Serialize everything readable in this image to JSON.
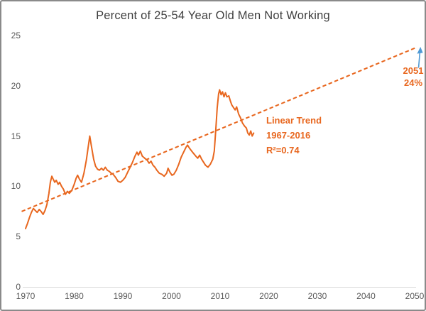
{
  "page": {
    "title": "Percent of 25-54 Year Old Men Not Working"
  },
  "colors": {
    "accent_orange": "#e8671f",
    "arrow_blue": "#4f9ad5",
    "title_gray": "#3e3e3e",
    "tick_gray": "#595959",
    "axis_line_gray": "#d9d9d9"
  },
  "chart_data": {
    "type": "line",
    "title": "Percent of 25-54 Year Old Men Not Working",
    "xlabel": "",
    "ylabel": "",
    "xlim": [
      1970,
      2050
    ],
    "ylim": [
      0,
      25
    ],
    "x_ticks": [
      1970,
      1980,
      1990,
      2000,
      2010,
      2020,
      2030,
      2040,
      2050
    ],
    "y_ticks": [
      0,
      5,
      10,
      15,
      20,
      25
    ],
    "grid": false,
    "legend_position": "none",
    "series": [
      {
        "name": "percent-not-working",
        "style": "solid",
        "points": [
          [
            1970.0,
            5.8
          ],
          [
            1970.4,
            6.3
          ],
          [
            1970.8,
            6.9
          ],
          [
            1971.2,
            7.4
          ],
          [
            1971.6,
            7.8
          ],
          [
            1972.0,
            7.6
          ],
          [
            1972.4,
            7.4
          ],
          [
            1972.8,
            7.7
          ],
          [
            1973.2,
            7.5
          ],
          [
            1973.6,
            7.2
          ],
          [
            1974.0,
            7.6
          ],
          [
            1974.4,
            8.2
          ],
          [
            1974.8,
            9.3
          ],
          [
            1975.1,
            10.4
          ],
          [
            1975.4,
            11.0
          ],
          [
            1975.7,
            10.7
          ],
          [
            1976.0,
            10.4
          ],
          [
            1976.3,
            10.6
          ],
          [
            1976.7,
            10.2
          ],
          [
            1977.0,
            10.4
          ],
          [
            1977.4,
            10.0
          ],
          [
            1977.8,
            9.7
          ],
          [
            1978.2,
            9.2
          ],
          [
            1978.6,
            9.5
          ],
          [
            1979.0,
            9.3
          ],
          [
            1979.5,
            9.6
          ],
          [
            1980.0,
            10.2
          ],
          [
            1980.4,
            10.8
          ],
          [
            1980.7,
            11.1
          ],
          [
            1981.1,
            10.7
          ],
          [
            1981.5,
            10.4
          ],
          [
            1982.0,
            11.3
          ],
          [
            1982.5,
            12.6
          ],
          [
            1983.0,
            14.3
          ],
          [
            1983.2,
            15.0
          ],
          [
            1983.5,
            14.1
          ],
          [
            1984.0,
            12.7
          ],
          [
            1984.4,
            12.0
          ],
          [
            1984.8,
            11.7
          ],
          [
            1985.2,
            11.6
          ],
          [
            1985.6,
            11.8
          ],
          [
            1986.0,
            11.6
          ],
          [
            1986.4,
            11.9
          ],
          [
            1986.8,
            11.6
          ],
          [
            1987.2,
            11.5
          ],
          [
            1987.6,
            11.3
          ],
          [
            1988.0,
            11.2
          ],
          [
            1988.5,
            10.9
          ],
          [
            1989.0,
            10.5
          ],
          [
            1989.5,
            10.4
          ],
          [
            1990.0,
            10.6
          ],
          [
            1990.5,
            10.9
          ],
          [
            1991.0,
            11.4
          ],
          [
            1991.5,
            11.9
          ],
          [
            1992.0,
            12.4
          ],
          [
            1992.5,
            13.0
          ],
          [
            1992.9,
            13.4
          ],
          [
            1993.2,
            13.1
          ],
          [
            1993.6,
            13.5
          ],
          [
            1994.0,
            13.0
          ],
          [
            1994.5,
            12.8
          ],
          [
            1995.0,
            12.6
          ],
          [
            1995.4,
            12.3
          ],
          [
            1995.8,
            12.5
          ],
          [
            1996.2,
            12.1
          ],
          [
            1996.6,
            11.9
          ],
          [
            1997.0,
            11.6
          ],
          [
            1997.5,
            11.3
          ],
          [
            1998.0,
            11.2
          ],
          [
            1998.5,
            11.0
          ],
          [
            1999.0,
            11.3
          ],
          [
            1999.3,
            11.8
          ],
          [
            1999.7,
            11.4
          ],
          [
            2000.1,
            11.1
          ],
          [
            2000.5,
            11.2
          ],
          [
            2001.0,
            11.6
          ],
          [
            2001.5,
            12.2
          ],
          [
            2002.0,
            12.9
          ],
          [
            2002.5,
            13.4
          ],
          [
            2003.0,
            13.9
          ],
          [
            2003.3,
            14.1
          ],
          [
            2003.7,
            13.8
          ],
          [
            2004.0,
            13.6
          ],
          [
            2004.5,
            13.3
          ],
          [
            2005.0,
            13.0
          ],
          [
            2005.4,
            12.8
          ],
          [
            2005.8,
            13.1
          ],
          [
            2006.2,
            12.7
          ],
          [
            2006.6,
            12.4
          ],
          [
            2007.0,
            12.1
          ],
          [
            2007.5,
            11.9
          ],
          [
            2008.0,
            12.2
          ],
          [
            2008.5,
            12.7
          ],
          [
            2008.8,
            13.5
          ],
          [
            2009.1,
            15.5
          ],
          [
            2009.4,
            17.8
          ],
          [
            2009.7,
            19.2
          ],
          [
            2009.9,
            19.6
          ],
          [
            2010.2,
            19.1
          ],
          [
            2010.5,
            19.4
          ],
          [
            2010.8,
            18.9
          ],
          [
            2011.1,
            19.3
          ],
          [
            2011.4,
            18.9
          ],
          [
            2011.8,
            19.0
          ],
          [
            2012.1,
            18.5
          ],
          [
            2012.4,
            18.1
          ],
          [
            2012.8,
            17.8
          ],
          [
            2013.1,
            17.6
          ],
          [
            2013.4,
            17.9
          ],
          [
            2013.8,
            17.2
          ],
          [
            2014.2,
            16.8
          ],
          [
            2014.6,
            16.3
          ],
          [
            2015.0,
            16.0
          ],
          [
            2015.4,
            15.8
          ],
          [
            2015.7,
            15.3
          ],
          [
            2016.0,
            15.1
          ],
          [
            2016.3,
            15.5
          ],
          [
            2016.6,
            15.0
          ],
          [
            2016.9,
            15.3
          ]
        ]
      },
      {
        "name": "linear-trend",
        "style": "dashed",
        "points": [
          [
            1969.2,
            7.5
          ],
          [
            2050.3,
            23.8
          ]
        ]
      }
    ],
    "annotations": [
      {
        "name": "trend-label",
        "lines": [
          "Linear Trend",
          "1967-2016",
          "R²=0.74"
        ]
      },
      {
        "name": "forecast-label",
        "lines": [
          "2051",
          "24%"
        ]
      }
    ]
  }
}
